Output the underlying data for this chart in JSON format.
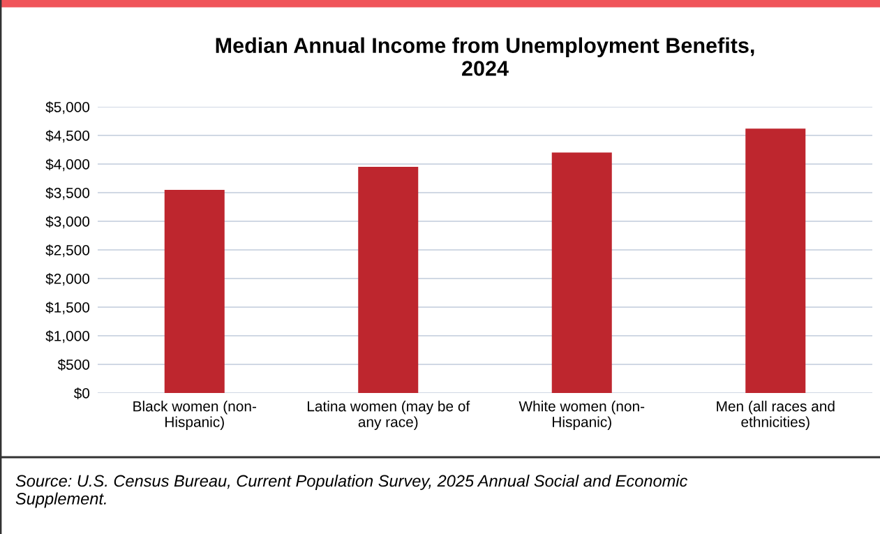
{
  "chart_data": {
    "type": "bar",
    "title": "Median Annual Income from Unemployment Benefits,\n2024",
    "categories": [
      "Black women (non-\nHispanic)",
      "Latina women (may be of\nany race)",
      "White women (non-\nHispanic)",
      "Men (all races and\nethnicities)"
    ],
    "values": [
      3550,
      3950,
      4200,
      4620
    ],
    "color": "#be262e",
    "ylim": [
      0,
      5000
    ],
    "yticks": [
      {
        "value": 0,
        "label": "$0"
      },
      {
        "value": 500,
        "label": "$500"
      },
      {
        "value": 1000,
        "label": "$1,000"
      },
      {
        "value": 1500,
        "label": "$1,500"
      },
      {
        "value": 2000,
        "label": "$2,000"
      },
      {
        "value": 2500,
        "label": "$2,500"
      },
      {
        "value": 3000,
        "label": "$3,000"
      },
      {
        "value": 3500,
        "label": "$3,500"
      },
      {
        "value": 4000,
        "label": "$4,000"
      },
      {
        "value": 4500,
        "label": "$4,500"
      },
      {
        "value": 5000,
        "label": "$5,000"
      }
    ],
    "grid": "y",
    "annotations": [
      "Source: U.S. Census Bureau, Current Population Survey, 2025 Annual Social and Economic\nSupplement."
    ]
  }
}
